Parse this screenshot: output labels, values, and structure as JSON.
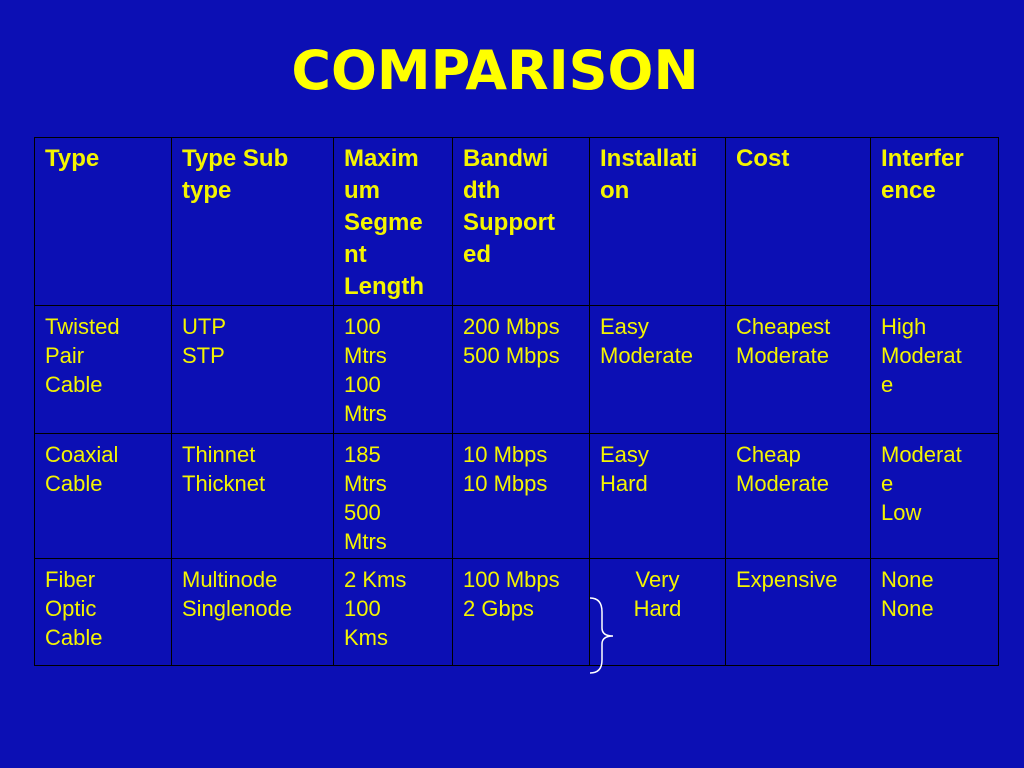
{
  "title": "COMPARISON",
  "table": {
    "header": [
      [
        "Type"
      ],
      [
        "Type Sub",
        "type"
      ],
      [
        "Maxim",
        "um",
        "Segme",
        "nt",
        "Length"
      ],
      [
        "Bandwi",
        "dth",
        "Support",
        "ed"
      ],
      [
        "Installati",
        "on"
      ],
      [
        "Cost"
      ],
      [
        "Interfer",
        "ence"
      ]
    ],
    "rows": [
      [
        [
          "Twisted",
          "Pair",
          "Cable"
        ],
        [
          "UTP",
          "STP"
        ],
        [
          "100",
          "Mtrs",
          "100",
          "Mtrs"
        ],
        [
          "200 Mbps",
          "500 Mbps"
        ],
        [
          "Easy",
          "Moderate"
        ],
        [
          "Cheapest",
          "Moderate"
        ],
        [
          "High",
          "Moderat",
          "e"
        ]
      ],
      [
        [
          "Coaxial",
          "Cable"
        ],
        [
          "Thinnet",
          "Thicknet"
        ],
        [
          "185",
          "Mtrs",
          "500",
          "Mtrs"
        ],
        [
          "10 Mbps",
          "10 Mbps"
        ],
        [
          "Easy",
          "Hard"
        ],
        [
          "Cheap",
          "Moderate"
        ],
        [
          "Moderat",
          "e",
          "Low"
        ]
      ],
      [
        [
          "Fiber",
          "Optic",
          "Cable"
        ],
        [
          "Multinode",
          "Singlenode"
        ],
        [
          "2 Kms",
          "100",
          "Kms"
        ],
        [
          "100 Mbps",
          "2 Gbps"
        ],
        [
          "Very",
          "Hard"
        ],
        [
          "Expensive"
        ],
        [
          "None",
          "None"
        ]
      ]
    ]
  }
}
